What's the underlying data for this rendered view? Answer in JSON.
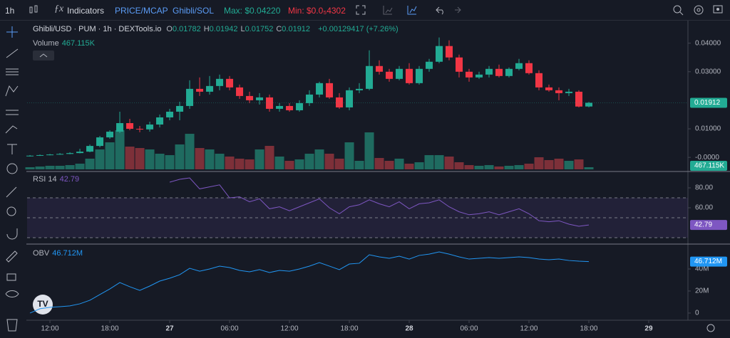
{
  "toolbar": {
    "interval": "1h",
    "indicators": "Indicators",
    "price_mcap": "PRICE/MCAP",
    "pair": "Ghibli/SOL",
    "max": "Max: $0.04220",
    "min": "Min: $0.0₅4302"
  },
  "legend": {
    "title": "Ghibli/USD · PUM · 1h · DEXTools.io",
    "ohlc_labels": [
      "O",
      "H",
      "L",
      "C"
    ],
    "change": "+0.00129417 (+7.26%)"
  },
  "chart_data": [
    {
      "type": "candlestick",
      "up_color": "#22ab94",
      "down_color": "#f23645",
      "x": [
        10,
        11,
        12,
        13,
        14,
        15,
        16,
        17,
        18,
        19,
        20,
        21,
        22,
        23,
        24,
        25,
        26,
        27,
        28,
        29,
        30,
        31,
        32,
        33,
        34,
        35,
        36,
        37,
        38,
        39,
        40,
        41,
        42,
        43,
        44,
        45,
        46,
        47,
        48,
        49,
        50,
        51,
        52,
        53,
        54,
        55,
        56,
        57,
        58,
        59,
        60,
        61,
        62,
        63,
        64,
        65,
        66
      ],
      "open": [
        0.0004,
        0.0006,
        0.0008,
        0.001,
        0.0012,
        0.0015,
        0.002,
        0.004,
        0.007,
        0.009,
        0.012,
        0.01,
        0.0098,
        0.0115,
        0.014,
        0.016,
        0.018,
        0.024,
        0.023,
        0.025,
        0.0275,
        0.0245,
        0.0215,
        0.02,
        0.021,
        0.017,
        0.018,
        0.0165,
        0.019,
        0.022,
        0.026,
        0.021,
        0.0175,
        0.0235,
        0.024,
        0.032,
        0.03,
        0.0275,
        0.031,
        0.026,
        0.031,
        0.0335,
        0.039,
        0.035,
        0.03,
        0.028,
        0.029,
        0.031,
        0.0285,
        0.031,
        0.033,
        0.0295,
        0.0245,
        0.0235,
        0.0225,
        0.023,
        0.01782
      ],
      "high": [
        0.0008,
        0.001,
        0.0012,
        0.0015,
        0.0018,
        0.003,
        0.0045,
        0.0075,
        0.0095,
        0.016,
        0.0135,
        0.011,
        0.0125,
        0.015,
        0.017,
        0.0195,
        0.027,
        0.028,
        0.0285,
        0.029,
        0.0285,
        0.0255,
        0.023,
        0.0225,
        0.022,
        0.019,
        0.019,
        0.02,
        0.0235,
        0.0265,
        0.0275,
        0.0225,
        0.0245,
        0.026,
        0.0375,
        0.034,
        0.031,
        0.032,
        0.033,
        0.032,
        0.0345,
        0.042,
        0.041,
        0.036,
        0.031,
        0.03,
        0.032,
        0.0325,
        0.0315,
        0.0345,
        0.034,
        0.0305,
        0.0255,
        0.0245,
        0.024,
        0.0235,
        0.01942
      ],
      "low": [
        0.0003,
        0.0005,
        0.0007,
        0.0009,
        0.0011,
        0.0014,
        0.0018,
        0.0035,
        0.0065,
        0.0085,
        0.0095,
        0.0088,
        0.009,
        0.0105,
        0.013,
        0.013,
        0.017,
        0.0215,
        0.022,
        0.0235,
        0.0235,
        0.0205,
        0.019,
        0.0185,
        0.016,
        0.016,
        0.016,
        0.016,
        0.018,
        0.021,
        0.0205,
        0.017,
        0.0165,
        0.0225,
        0.0235,
        0.029,
        0.0265,
        0.027,
        0.0255,
        0.0255,
        0.03,
        0.033,
        0.034,
        0.028,
        0.0265,
        0.0275,
        0.028,
        0.028,
        0.028,
        0.0305,
        0.029,
        0.0235,
        0.023,
        0.02,
        0.0215,
        0.0175,
        0.01752
      ],
      "close": [
        0.0006,
        0.0008,
        0.001,
        0.0012,
        0.0015,
        0.002,
        0.004,
        0.007,
        0.009,
        0.012,
        0.01,
        0.0098,
        0.0115,
        0.014,
        0.016,
        0.018,
        0.024,
        0.023,
        0.025,
        0.0275,
        0.0245,
        0.0215,
        0.02,
        0.021,
        0.017,
        0.018,
        0.0165,
        0.019,
        0.022,
        0.026,
        0.021,
        0.0175,
        0.0235,
        0.024,
        0.032,
        0.03,
        0.0275,
        0.031,
        0.026,
        0.031,
        0.0335,
        0.039,
        0.035,
        0.03,
        0.028,
        0.029,
        0.031,
        0.0285,
        0.031,
        0.033,
        0.0295,
        0.0245,
        0.0235,
        0.0225,
        0.023,
        0.0178,
        0.01912
      ],
      "xlim": [
        9.71,
        75.93
      ],
      "xticks": [
        {
          "value": 12,
          "label": "12:00"
        },
        {
          "value": 18,
          "label": "18:00"
        },
        {
          "value": 24,
          "label": "27"
        },
        {
          "value": 30,
          "label": "06:00"
        },
        {
          "value": 36,
          "label": "12:00"
        },
        {
          "value": 42,
          "label": "18:00"
        },
        {
          "value": 48,
          "label": "28"
        },
        {
          "value": 54,
          "label": "06:00"
        },
        {
          "value": 60,
          "label": "12:00"
        },
        {
          "value": 66,
          "label": "18:00"
        },
        {
          "value": 72,
          "label": "29"
        }
      ],
      "ylim": [
        -0.0047,
        0.0479
      ],
      "yticks": [
        {
          "value": 0.04,
          "label": "0.04000"
        },
        {
          "value": 0.03,
          "label": "0.03000"
        },
        {
          "value": 0.01,
          "label": "0.01000"
        },
        {
          "value": 0,
          "label": "-0.0000"
        }
      ]
    },
    {
      "type": "bar",
      "title": "Volume",
      "last_label": "467.115K",
      "x": [
        10,
        11,
        12,
        13,
        14,
        15,
        16,
        17,
        18,
        19,
        20,
        21,
        22,
        23,
        24,
        25,
        26,
        27,
        28,
        29,
        30,
        31,
        32,
        33,
        34,
        35,
        36,
        37,
        38,
        39,
        40,
        41,
        42,
        43,
        44,
        45,
        46,
        47,
        48,
        49,
        50,
        51,
        52,
        53,
        54,
        55,
        56,
        57,
        58,
        59,
        60,
        61,
        62,
        63,
        64,
        65,
        66
      ],
      "values": [
        470,
        620,
        780,
        780,
        930,
        1240,
        2330,
        4340,
        5890,
        8530,
        4960,
        4650,
        4340,
        3410,
        3100,
        5430,
        7750,
        4650,
        4340,
        3410,
        2790,
        2330,
        2170,
        4340,
        5120,
        2790,
        1860,
        2170,
        3410,
        4340,
        3410,
        2330,
        5890,
        1860,
        8060,
        2480,
        1860,
        2330,
        1240,
        1550,
        3100,
        3100,
        2790,
        1550,
        930,
        780,
        930,
        620,
        780,
        930,
        1240,
        2640,
        2020,
        2330,
        1860,
        2170,
        467.115
      ],
      "up_color": "#1f6b60",
      "down_color": "#7d3039"
    },
    {
      "type": "line",
      "title": "RSI 14",
      "color": "#7e57c2",
      "x": [
        24,
        25,
        26,
        27,
        28,
        29,
        30,
        31,
        32,
        33,
        34,
        35,
        36,
        37,
        38,
        39,
        40,
        41,
        42,
        43,
        44,
        45,
        46,
        47,
        48,
        49,
        50,
        51,
        52,
        53,
        54,
        55,
        56,
        57,
        58,
        59,
        60,
        61,
        62,
        63,
        64,
        65,
        66
      ],
      "values": [
        85.7,
        88.6,
        90,
        79,
        81,
        83,
        70,
        71,
        66,
        69,
        59,
        61,
        57,
        61,
        65,
        69,
        60,
        54,
        61,
        63,
        68,
        64,
        61,
        66,
        59,
        64,
        65,
        68,
        61,
        56,
        53,
        54,
        56,
        53,
        56,
        59,
        54,
        47,
        46,
        47,
        43.6,
        41.4,
        42.79
      ],
      "ylim": [
        25,
        95
      ],
      "yticks": [
        {
          "value": 80,
          "label": "80.00"
        },
        {
          "value": 60,
          "label": "60.00"
        }
      ],
      "bands": [
        70,
        50,
        30
      ]
    },
    {
      "type": "line",
      "title": "OBV",
      "color": "#2196f3",
      "last_label": "46.712M",
      "x": [
        10,
        11,
        12,
        13,
        14,
        15,
        16,
        17,
        18,
        19,
        20,
        21,
        22,
        23,
        24,
        25,
        26,
        27,
        28,
        29,
        30,
        31,
        32,
        33,
        34,
        35,
        36,
        37,
        38,
        39,
        40,
        41,
        42,
        43,
        44,
        45,
        46,
        47,
        48,
        49,
        50,
        51,
        52,
        53,
        54,
        55,
        56,
        57,
        58,
        59,
        60,
        61,
        62,
        63,
        64,
        65,
        66
      ],
      "values": [
        0,
        3.9,
        5.2,
        5.8,
        6.5,
        8.4,
        11.6,
        16.8,
        21.9,
        27.7,
        23.9,
        20.6,
        24.5,
        29,
        31.6,
        34.8,
        40.6,
        38,
        40,
        42.6,
        41.3,
        38.7,
        37.4,
        39.4,
        36.8,
        38.7,
        38,
        40,
        42.6,
        45.8,
        42.6,
        39.4,
        44.5,
        45.2,
        52.9,
        51,
        49.7,
        51.6,
        49,
        52.3,
        53.5,
        55.5,
        53.5,
        51,
        49,
        49.7,
        50.3,
        49.7,
        50.3,
        51,
        50.3,
        49,
        48.4,
        49,
        47.7,
        47.1,
        46.712
      ],
      "ylim": [
        -5.2,
        61.3
      ],
      "yticks": [
        {
          "value": 40,
          "label": "40M"
        },
        {
          "value": 20,
          "label": "20M"
        },
        0
      ]
    }
  ]
}
